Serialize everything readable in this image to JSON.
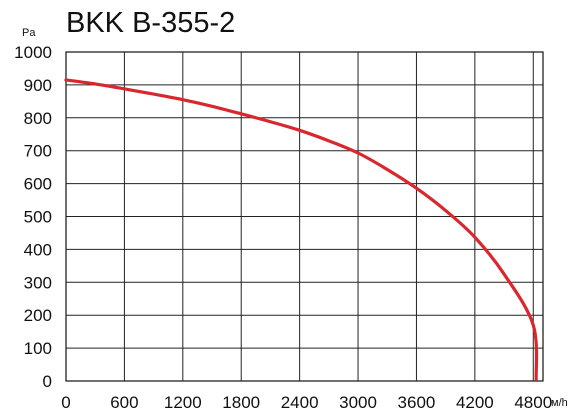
{
  "chart_data": {
    "type": "line",
    "title": "BKK B-355-2",
    "xlabel": "м/h",
    "ylabel": "Pa",
    "xlim": [
      0,
      4900
    ],
    "ylim": [
      0,
      1000
    ],
    "x_ticks": [
      0,
      600,
      1200,
      1800,
      2400,
      3000,
      3600,
      4200,
      4800
    ],
    "y_ticks": [
      0,
      100,
      200,
      300,
      400,
      500,
      600,
      700,
      800,
      900,
      1000
    ],
    "grid": true,
    "series": [
      {
        "color": "#d9272e",
        "x": [
          0,
          300,
          600,
          900,
          1200,
          1500,
          1800,
          2100,
          2400,
          2700,
          3000,
          3300,
          3600,
          3900,
          4200,
          4500,
          4800,
          4830
        ],
        "y": [
          915,
          903,
          888,
          872,
          855,
          835,
          812,
          788,
          762,
          730,
          693,
          643,
          586,
          518,
          437,
          325,
          170,
          5
        ]
      }
    ]
  }
}
